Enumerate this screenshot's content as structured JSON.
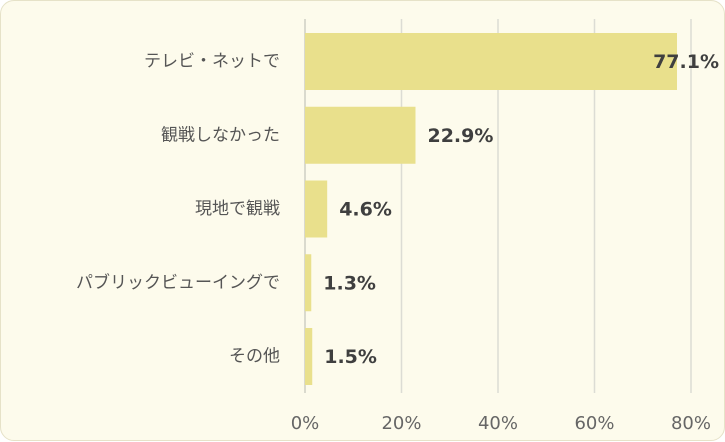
{
  "chart_data": {
    "type": "bar",
    "orientation": "horizontal",
    "categories": [
      "テレビ・ネットで",
      "観戦しなかった",
      "現地で観戦",
      "パブリックビューイングで",
      "その他"
    ],
    "values": [
      77.1,
      22.9,
      4.6,
      1.3,
      1.5
    ],
    "value_labels": [
      "77.1%",
      "22.9%",
      "4.6%",
      "1.3%",
      "1.5%"
    ],
    "xlim": [
      0,
      80
    ],
    "x_ticks": [
      0,
      20,
      40,
      60,
      80
    ],
    "x_tick_labels": [
      "0%",
      "20%",
      "40%",
      "60%",
      "80%"
    ],
    "grid": true,
    "bar_color": "#e9e08c",
    "background_color": "#fdfbec"
  }
}
